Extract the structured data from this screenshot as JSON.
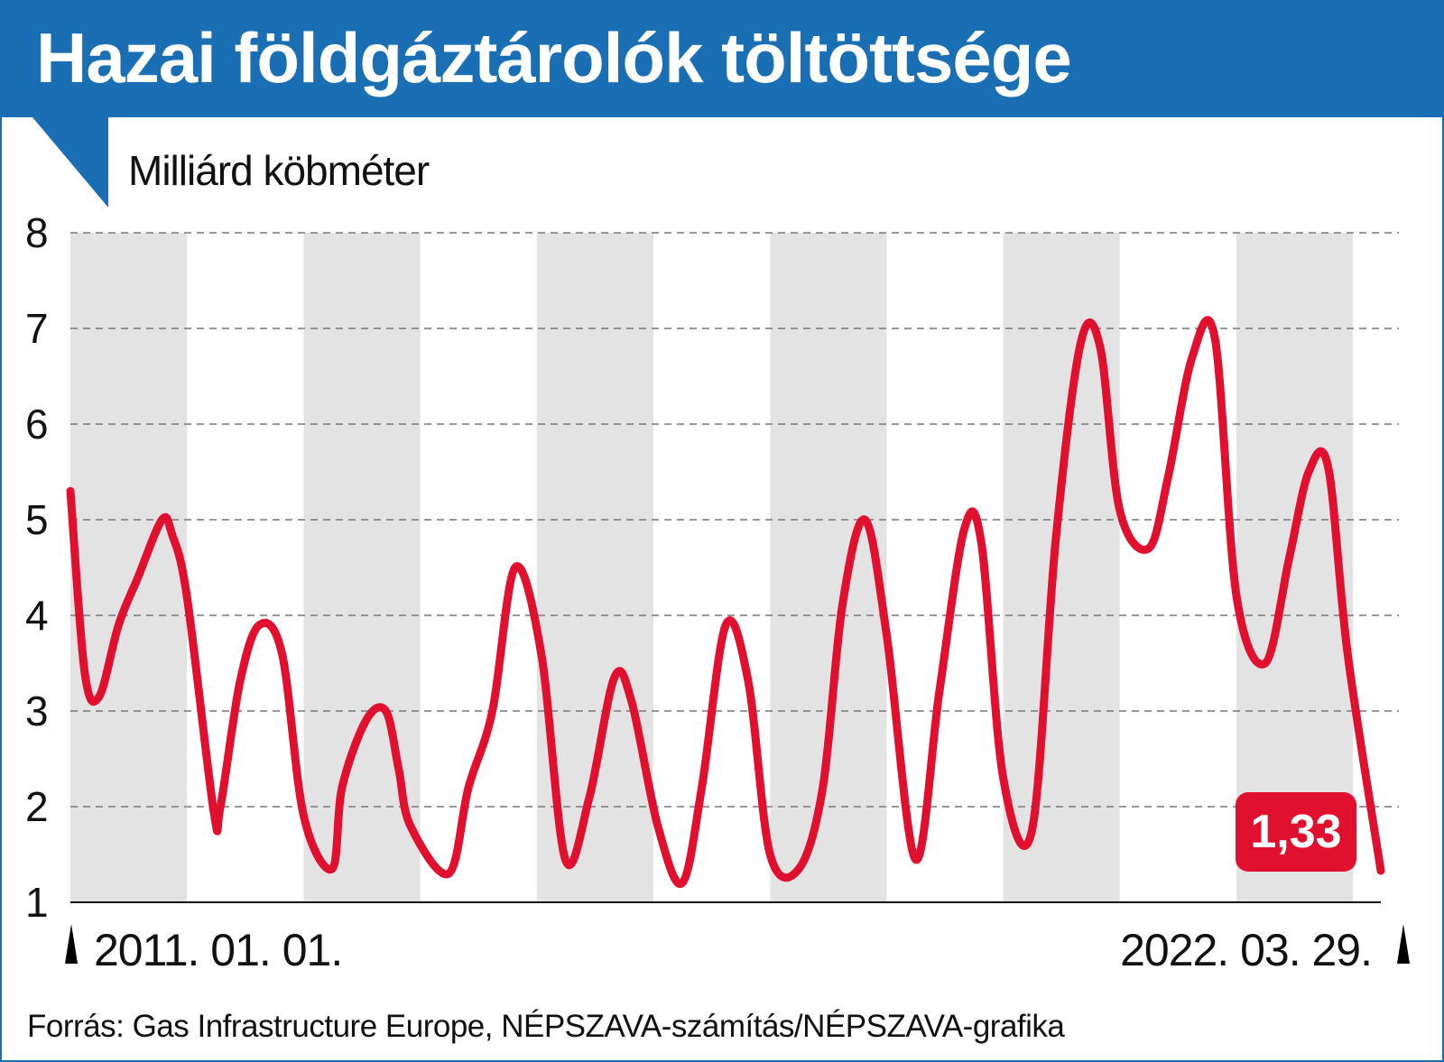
{
  "title": "Hazai földgáztárolók töltöttsége",
  "colors": {
    "brand_blue": "#1a6fb4",
    "line_red": "#e0102e",
    "band_gray": "#e3e3e3",
    "grid": "#777777"
  },
  "chart_data": {
    "type": "line",
    "ylabel": "Milliárd köbméter",
    "ylim": [
      1,
      8
    ],
    "yticks": [
      "8",
      "7",
      "6",
      "5",
      "4",
      "3",
      "2",
      "1"
    ],
    "x_start_label": "2011. 01. 01.",
    "x_end_label": "2022. 03. 29.",
    "last_value_label": "1,33",
    "last_value": 1.33,
    "grid": true,
    "year_bands": "alternating gray/white, one band per year",
    "series": [
      {
        "x": [
          "2011-01-01",
          "2011-02-15",
          "2011-04-01",
          "2011-06-01",
          "2011-08-01",
          "2011-10-15",
          "2011-11-15",
          "2012-01-01",
          "2012-03-25",
          "2012-04-15",
          "2012-06-15",
          "2012-08-15",
          "2012-10-25",
          "2013-01-01",
          "2013-03-31",
          "2013-05-01",
          "2013-07-15",
          "2013-09-15",
          "2013-10-25",
          "2013-12-01",
          "2014-03-31",
          "2014-06-01",
          "2014-08-15",
          "2014-10-25",
          "2015-01-15",
          "2015-03-31",
          "2015-06-15",
          "2015-09-01",
          "2015-10-25",
          "2016-01-15",
          "2016-03-31",
          "2016-06-01",
          "2016-08-15",
          "2016-10-25",
          "2017-01-01",
          "2017-04-01",
          "2017-06-15",
          "2017-08-15",
          "2017-10-25",
          "2018-01-01",
          "2018-04-01",
          "2018-06-15",
          "2018-09-01",
          "2018-10-25",
          "2019-01-01",
          "2019-04-01",
          "2019-06-15",
          "2019-09-01",
          "2019-11-01",
          "2020-01-01",
          "2020-04-01",
          "2020-06-01",
          "2020-08-15",
          "2020-10-25",
          "2021-01-01",
          "2021-04-01",
          "2021-06-15",
          "2021-08-15",
          "2021-10-15",
          "2021-12-15",
          "2022-03-29"
        ],
        "values": [
          5.3,
          3.4,
          3.15,
          3.9,
          4.4,
          5.0,
          4.85,
          4.2,
          1.95,
          2.0,
          3.3,
          3.9,
          3.6,
          1.9,
          1.35,
          2.2,
          2.9,
          3.0,
          2.4,
          1.8,
          1.3,
          2.2,
          3.0,
          4.5,
          3.6,
          1.45,
          2.1,
          3.35,
          3.1,
          1.8,
          1.2,
          2.2,
          3.9,
          3.3,
          1.5,
          1.35,
          2.2,
          4.1,
          5.0,
          3.8,
          1.45,
          3.2,
          4.9,
          4.75,
          2.3,
          1.75,
          4.8,
          6.85,
          6.8,
          5.1,
          4.7,
          5.45,
          6.7,
          6.9,
          4.2,
          3.5,
          4.6,
          5.5,
          5.55,
          3.6,
          1.33
        ]
      }
    ]
  },
  "source": "Forrás: Gas Infrastructure Europe, NÉPSZAVA-számítás/NÉPSZAVA-grafika"
}
